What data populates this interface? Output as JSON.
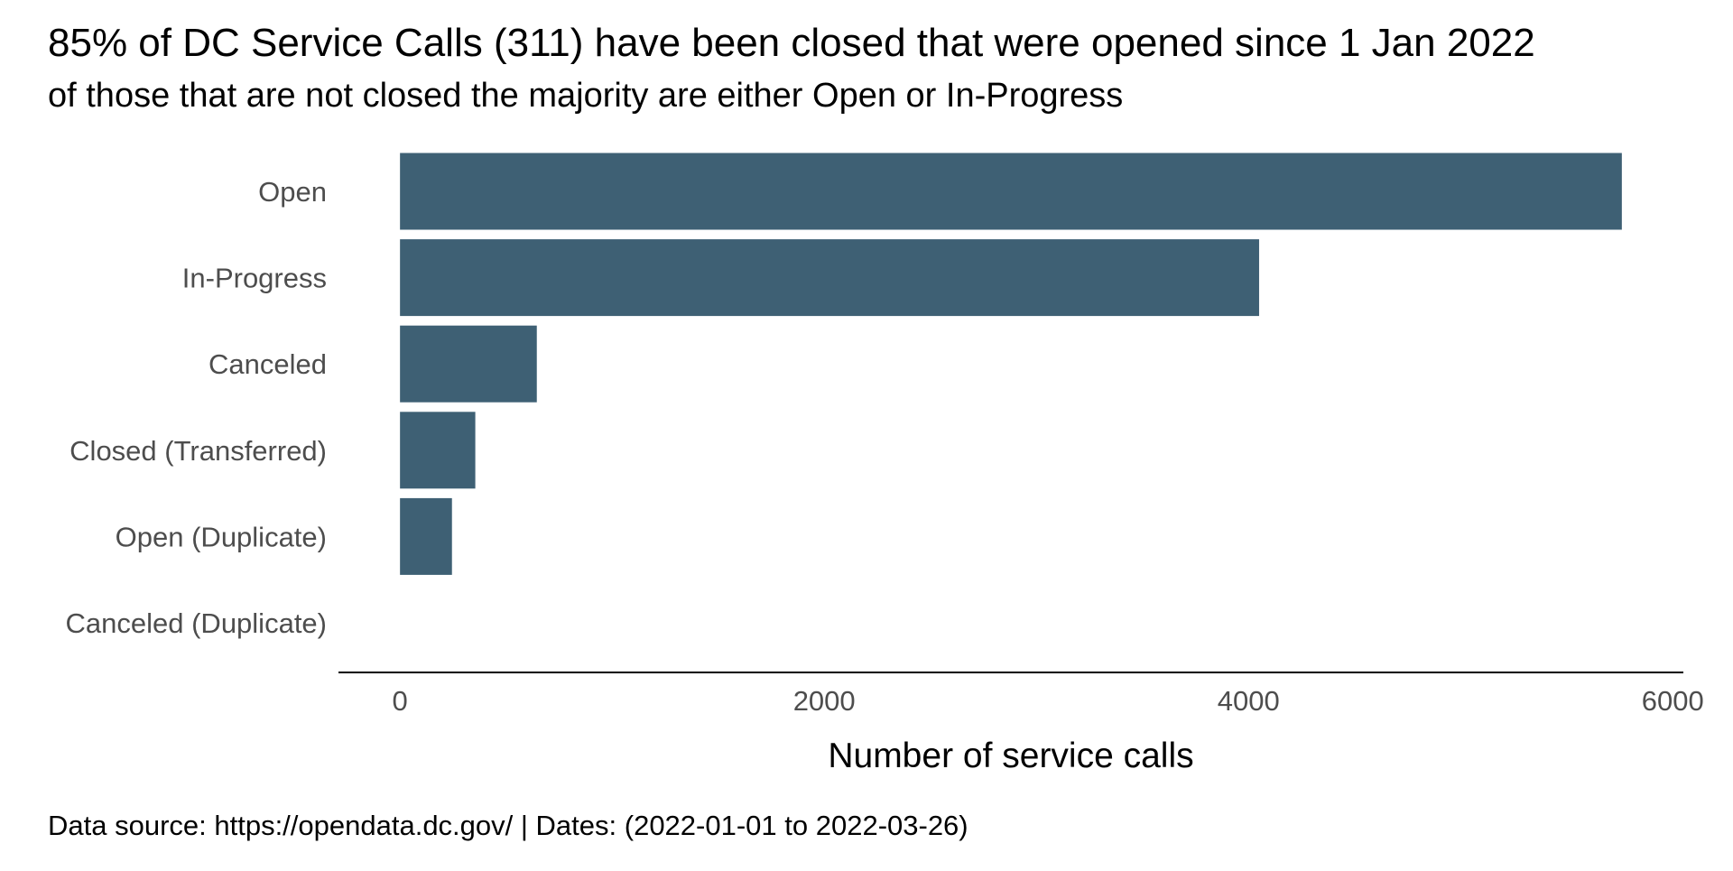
{
  "chart_data": {
    "type": "bar",
    "orientation": "horizontal",
    "title": "85% of DC Service Calls (311) have been closed that were opened since 1 Jan 2022",
    "subtitle": "of those that are not closed the majority are either Open or In-Progress",
    "categories": [
      "Open",
      "In-Progress",
      "Canceled",
      "Closed (Transferred)",
      "Open (Duplicate)",
      "Canceled (Duplicate)"
    ],
    "values": [
      5760,
      4050,
      645,
      355,
      245,
      0
    ],
    "xlabel": "Number of service calls",
    "ylabel": "",
    "xlim": [
      -290,
      6050
    ],
    "x_ticks": [
      0,
      2000,
      4000,
      6000
    ],
    "x_tick_labels": [
      "0",
      "2000",
      "4000",
      "6000"
    ],
    "caption": "Data source: https://opendata.dc.gov/ | Dates: (2022-01-01 to 2022-03-26)",
    "grid": false,
    "legend": "none",
    "bar_color": "#3e6074",
    "text_color": "#000000",
    "label_color": "#4d4d4d"
  }
}
